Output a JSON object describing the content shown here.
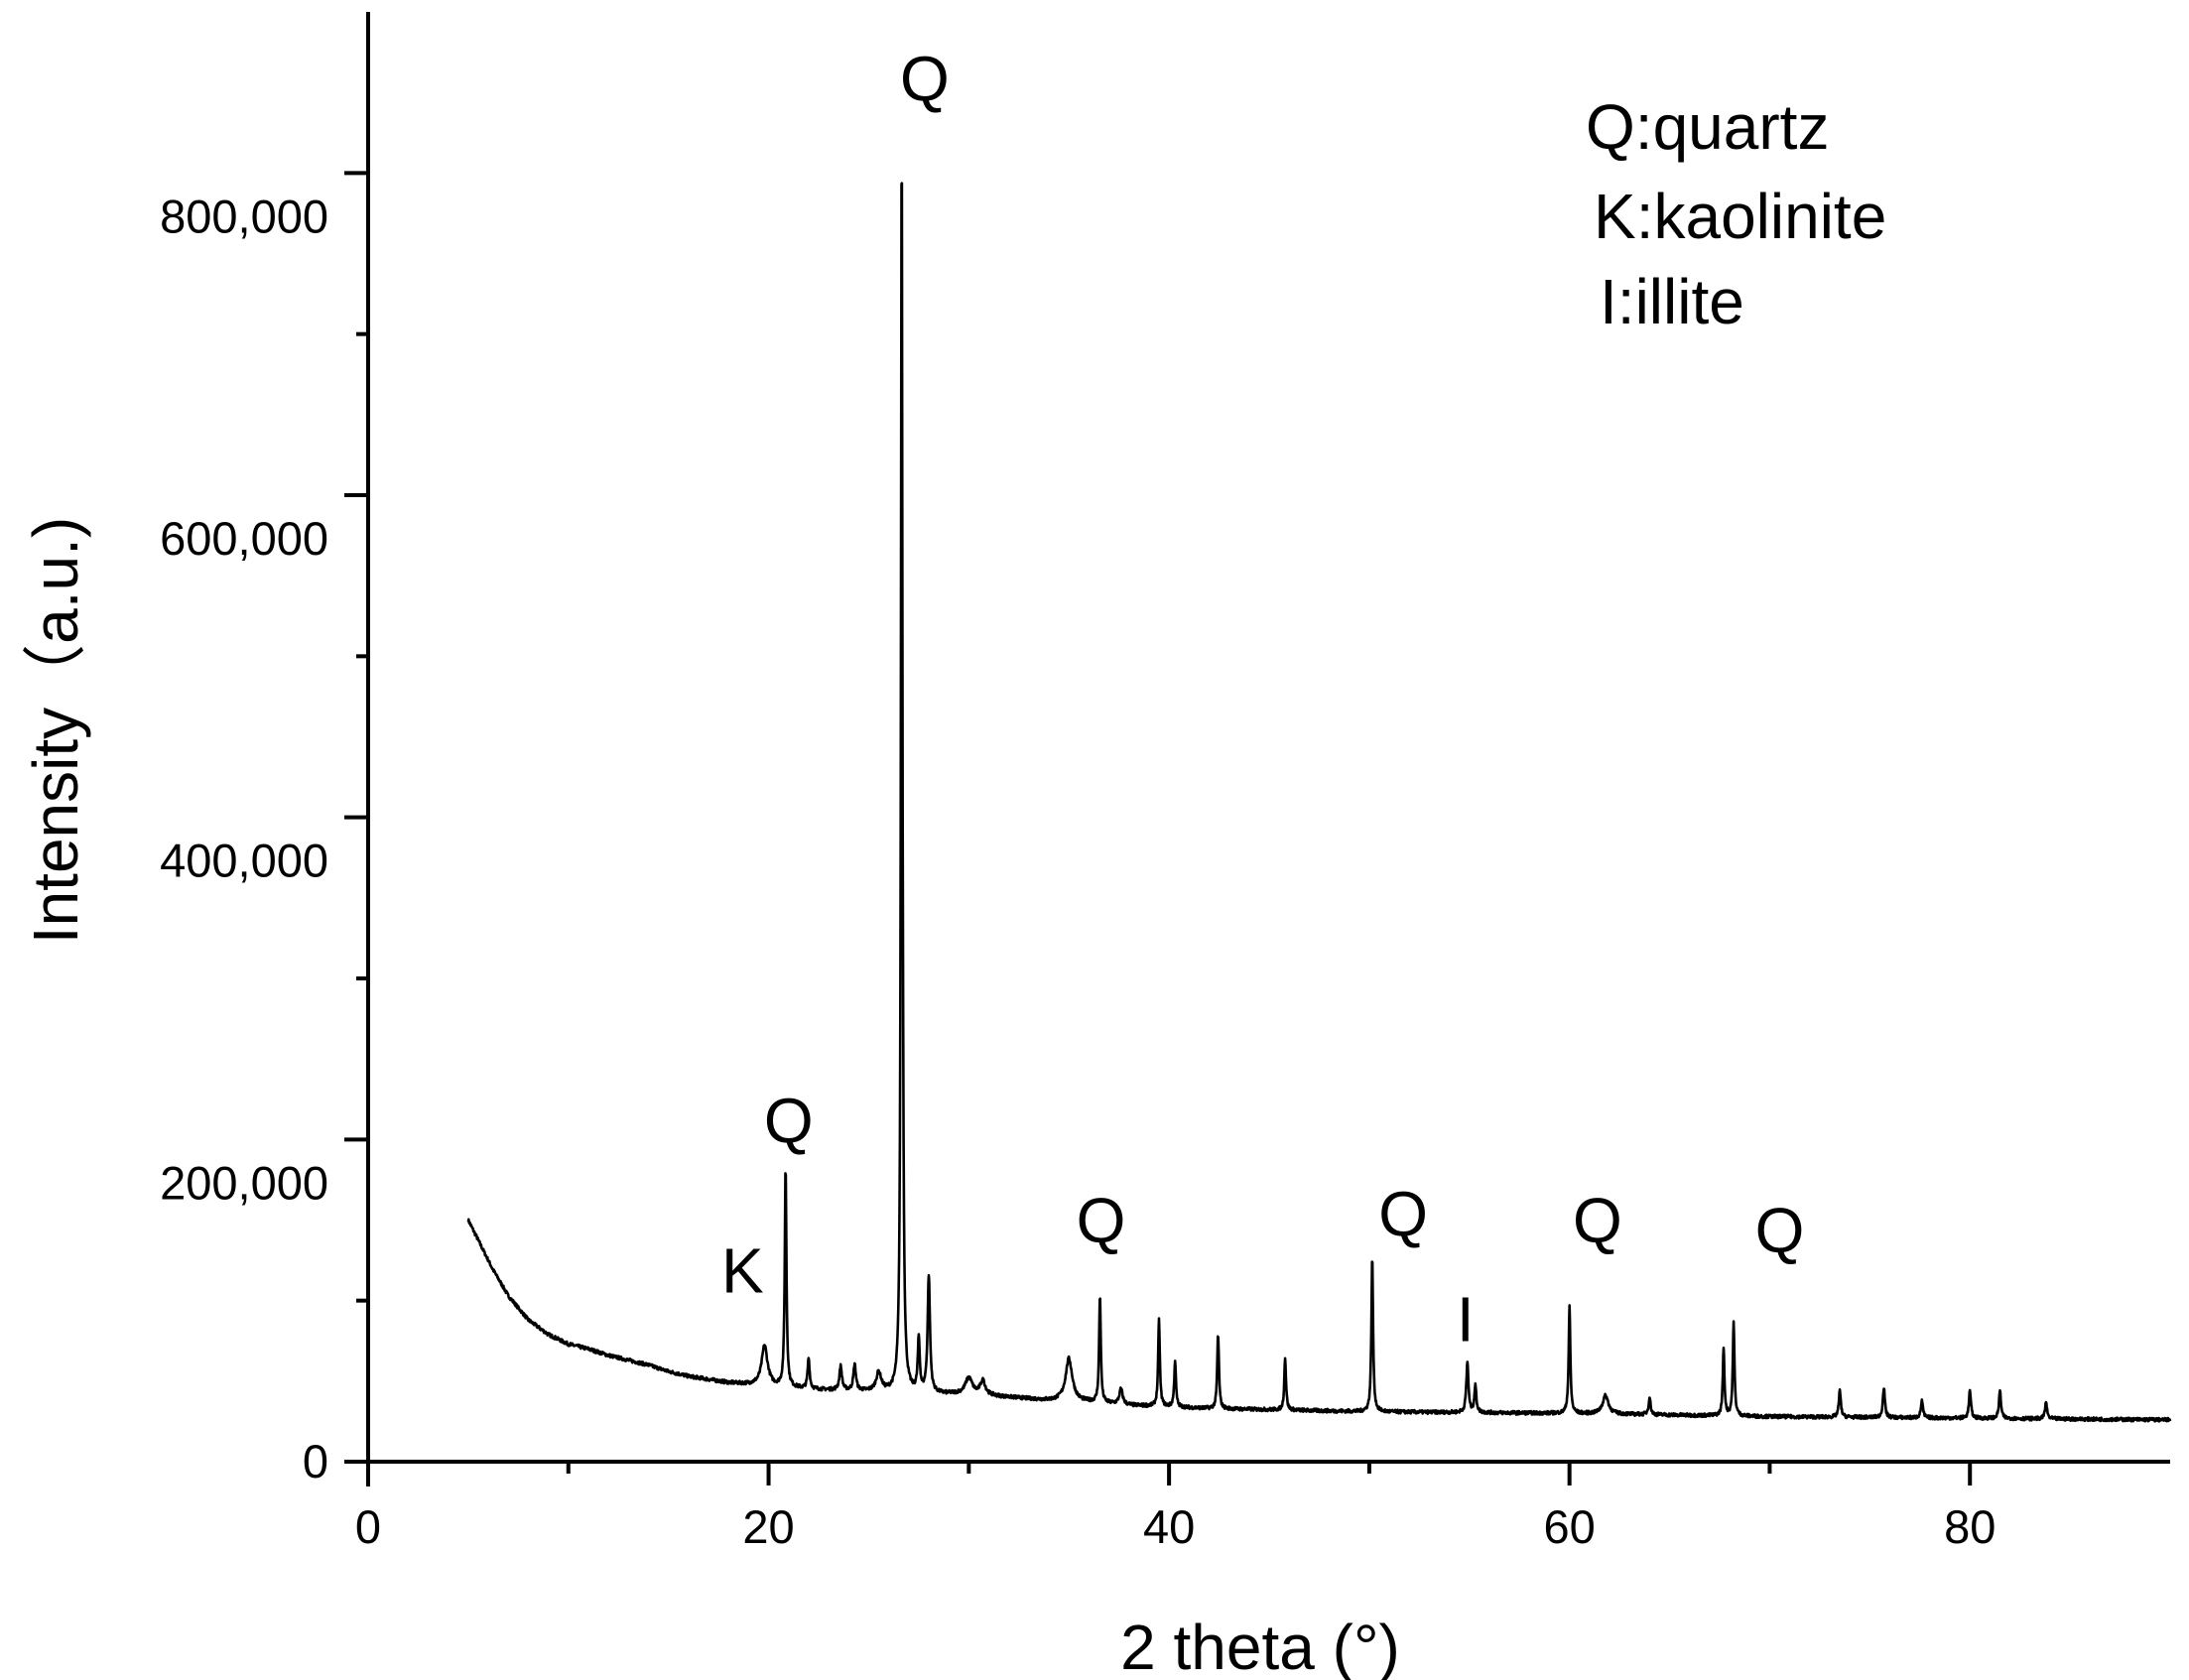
{
  "chart_data": {
    "type": "line",
    "title": "",
    "xlabel": "2 theta (°)",
    "ylabel": "Intensity（a.u.)",
    "xlim": [
      0,
      90
    ],
    "ylim": [
      0,
      900000
    ],
    "x_ticks": [
      0,
      20,
      40,
      60,
      80
    ],
    "x_tick_labels": [
      "0",
      "20",
      "40",
      "60",
      "80"
    ],
    "y_ticks": [
      0,
      200000,
      400000,
      600000,
      800000
    ],
    "y_tick_labels": [
      "0",
      "200,000",
      "400,000",
      "600,000",
      "800,000"
    ],
    "grid": false,
    "legend": [
      "Q:quartz",
      "K:kaolinite",
      "I:illite"
    ],
    "legend_position": "top-right",
    "annotations": [
      {
        "text": "K",
        "x": 18.7,
        "y": 105000
      },
      {
        "text": "Q",
        "x": 21.0,
        "y": 198000
      },
      {
        "text": "Q",
        "x": 27.8,
        "y": 845000
      },
      {
        "text": "Q",
        "x": 36.6,
        "y": 136000
      },
      {
        "text": "Q",
        "x": 51.7,
        "y": 140000
      },
      {
        "text": "I",
        "x": 54.8,
        "y": 75000
      },
      {
        "text": "Q",
        "x": 61.4,
        "y": 136000
      },
      {
        "text": "Q",
        "x": 70.5,
        "y": 130000
      }
    ],
    "background_points": [
      [
        5.0,
        150000
      ],
      [
        5.6,
        135000
      ],
      [
        6.2,
        120000
      ],
      [
        7.0,
        103000
      ],
      [
        8.0,
        88000
      ],
      [
        9.0,
        79000
      ],
      [
        10.0,
        73000
      ],
      [
        11.0,
        70000
      ],
      [
        12.0,
        66000
      ],
      [
        13.0,
        63000
      ],
      [
        14.0,
        60000
      ],
      [
        15.0,
        56000
      ],
      [
        16.0,
        53000
      ],
      [
        17.0,
        51000
      ],
      [
        18.0,
        49000
      ],
      [
        19.0,
        48000
      ],
      [
        20.0,
        47000
      ],
      [
        22.0,
        45000
      ],
      [
        24.0,
        44000
      ],
      [
        26.0,
        43000
      ],
      [
        28.0,
        42000
      ],
      [
        30.0,
        42000
      ],
      [
        32.0,
        40000
      ],
      [
        34.0,
        38000
      ],
      [
        36.0,
        37000
      ],
      [
        38.0,
        35000
      ],
      [
        40.0,
        34000
      ],
      [
        42.0,
        33000
      ],
      [
        44.0,
        32500
      ],
      [
        46.0,
        32000
      ],
      [
        48.0,
        31500
      ],
      [
        50.0,
        31000
      ],
      [
        55.0,
        30500
      ],
      [
        60.0,
        30000
      ],
      [
        65.0,
        29000
      ],
      [
        70.0,
        28000
      ],
      [
        75.0,
        27500
      ],
      [
        80.0,
        27000
      ],
      [
        85.0,
        26500
      ],
      [
        90.0,
        26000
      ]
    ],
    "peaks": [
      {
        "x": 19.8,
        "y": 72000,
        "w": 0.35
      },
      {
        "x": 20.85,
        "y": 183000,
        "w": 0.1
      },
      {
        "x": 22.0,
        "y": 64000,
        "w": 0.12
      },
      {
        "x": 23.6,
        "y": 59000,
        "w": 0.15
      },
      {
        "x": 24.3,
        "y": 60000,
        "w": 0.15
      },
      {
        "x": 25.5,
        "y": 55000,
        "w": 0.3
      },
      {
        "x": 26.65,
        "y": 830000,
        "w": 0.09
      },
      {
        "x": 27.5,
        "y": 75000,
        "w": 0.12
      },
      {
        "x": 28.0,
        "y": 115000,
        "w": 0.14
      },
      {
        "x": 30.0,
        "y": 52000,
        "w": 0.4
      },
      {
        "x": 30.7,
        "y": 50000,
        "w": 0.3
      },
      {
        "x": 35.0,
        "y": 64000,
        "w": 0.4
      },
      {
        "x": 36.55,
        "y": 103000,
        "w": 0.1
      },
      {
        "x": 37.6,
        "y": 45000,
        "w": 0.2
      },
      {
        "x": 39.5,
        "y": 88000,
        "w": 0.1
      },
      {
        "x": 40.3,
        "y": 63000,
        "w": 0.1
      },
      {
        "x": 42.45,
        "y": 79000,
        "w": 0.1
      },
      {
        "x": 45.8,
        "y": 65000,
        "w": 0.1
      },
      {
        "x": 50.15,
        "y": 127000,
        "w": 0.1
      },
      {
        "x": 54.9,
        "y": 62000,
        "w": 0.12
      },
      {
        "x": 55.3,
        "y": 47000,
        "w": 0.12
      },
      {
        "x": 60.0,
        "y": 96000,
        "w": 0.1
      },
      {
        "x": 61.8,
        "y": 41000,
        "w": 0.35
      },
      {
        "x": 64.0,
        "y": 40000,
        "w": 0.12
      },
      {
        "x": 67.7,
        "y": 70000,
        "w": 0.1
      },
      {
        "x": 68.2,
        "y": 86000,
        "w": 0.1
      },
      {
        "x": 73.5,
        "y": 44000,
        "w": 0.12
      },
      {
        "x": 75.7,
        "y": 46000,
        "w": 0.12
      },
      {
        "x": 77.6,
        "y": 38000,
        "w": 0.12
      },
      {
        "x": 80.0,
        "y": 44000,
        "w": 0.12
      },
      {
        "x": 81.5,
        "y": 44000,
        "w": 0.12
      },
      {
        "x": 83.8,
        "y": 37000,
        "w": 0.12
      }
    ]
  }
}
